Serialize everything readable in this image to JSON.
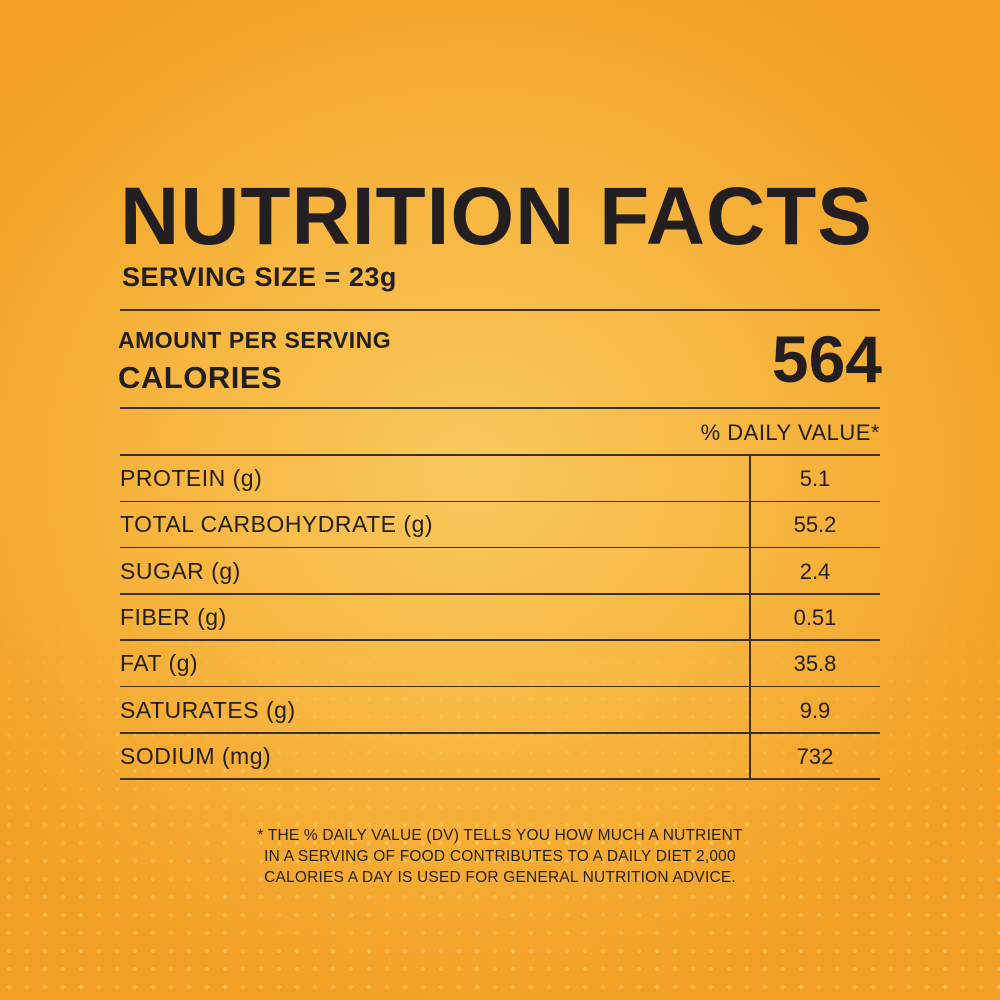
{
  "title": "NUTRITION FACTS",
  "serving_size": "SERVING SIZE = 23g",
  "amount_per_serving": "AMOUNT PER SERVING",
  "calories_label": "CALORIES",
  "calories_value": "564",
  "daily_value_header": "% DAILY VALUE*",
  "nutrients": [
    {
      "label": "PROTEIN (g)",
      "value": "5.1"
    },
    {
      "label": "TOTAL CARBOHYDRATE (g)",
      "value": "55.2"
    },
    {
      "label": "SUGAR (g)",
      "value": "2.4"
    },
    {
      "label": "FIBER (g)",
      "value": "0.51"
    },
    {
      "label": "FAT (g)",
      "value": "35.8"
    },
    {
      "label": "SATURATES (g)",
      "value": "9.9"
    },
    {
      "label": "SODIUM (mg)",
      "value": "732"
    }
  ],
  "footnote": [
    "* THE % DAILY VALUE (DV) TELLS YOU HOW MUCH A NUTRIENT",
    "IN A SERVING OF FOOD CONTRIBUTES TO A DAILY DIET 2,000",
    "CALORIES A DAY IS USED FOR GENERAL NUTRITION ADVICE."
  ],
  "colors": {
    "background": "#f7b843",
    "text": "#231f20"
  }
}
